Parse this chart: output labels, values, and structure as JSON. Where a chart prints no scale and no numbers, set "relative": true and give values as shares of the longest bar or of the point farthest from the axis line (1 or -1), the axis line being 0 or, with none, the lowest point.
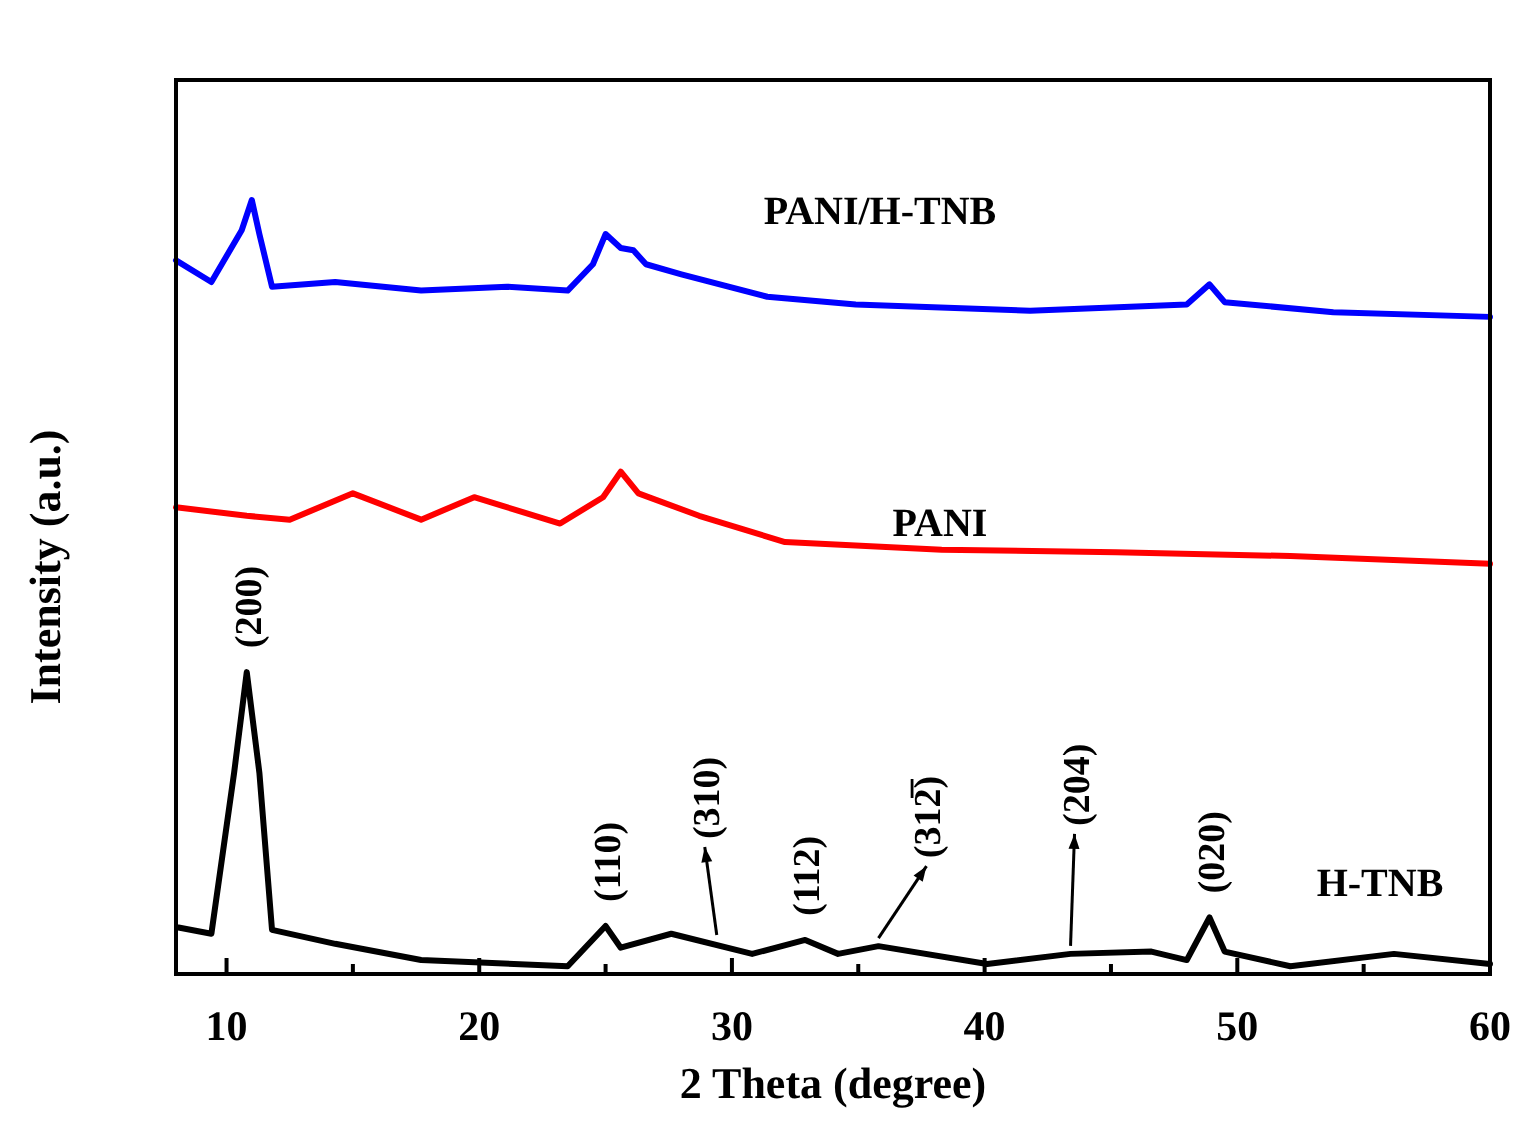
{
  "chart_data": {
    "type": "line",
    "relative": true,
    "xlabel": "2 Theta (degree)",
    "ylabel": "Intensity (a.u.)",
    "xlim": [
      8,
      60
    ],
    "xticks": [
      10,
      {
        "value": 15,
        "label": null
      },
      20,
      {
        "value": 25,
        "label": null
      },
      30,
      {
        "value": 35,
        "label": null
      },
      40,
      {
        "value": 45,
        "label": null
      },
      50,
      {
        "value": 55,
        "label": null
      },
      60
    ],
    "tick_labels": "x",
    "grid": false,
    "legend": false,
    "marker": "none",
    "line_style": "solid",
    "series": [
      {
        "name": "PANI/H-TNB",
        "color": "#0000ff",
        "x": [
          8,
          9.4,
          10.6,
          11.0,
          11.3,
          11.8,
          14.3,
          17.7,
          21.1,
          23.5,
          24.5,
          25.0,
          25.6,
          26.1,
          26.6,
          28.0,
          31.4,
          34.9,
          41.8,
          48.0,
          48.9,
          49.5,
          53.8,
          60
        ],
        "values": [
          0.922,
          0.894,
          0.961,
          1.0,
          0.956,
          0.888,
          0.894,
          0.883,
          0.888,
          0.883,
          0.917,
          0.956,
          0.938,
          0.935,
          0.917,
          0.904,
          0.875,
          0.865,
          0.857,
          0.865,
          0.891,
          0.868,
          0.855,
          0.849
        ]
      },
      {
        "name": "PANI",
        "color": "#ff0000",
        "x": [
          8,
          10.8,
          12.5,
          15,
          17.7,
          19.8,
          23.2,
          24.9,
          25.6,
          26.3,
          28.7,
          32.1,
          38.3,
          45.2,
          52.1,
          60
        ],
        "values": [
          0.603,
          0.592,
          0.587,
          0.621,
          0.587,
          0.616,
          0.582,
          0.616,
          0.649,
          0.621,
          0.592,
          0.558,
          0.548,
          0.545,
          0.54,
          0.53
        ]
      },
      {
        "name": "H-TNB",
        "color": "#000000",
        "x": [
          8.1,
          9.4,
          10.3,
          10.8,
          11.3,
          11.8,
          14.3,
          17.7,
          23.5,
          25.0,
          25.6,
          27.6,
          30.8,
          32.9,
          34.2,
          35.8,
          40.1,
          43.4,
          46.6,
          48.0,
          48.9,
          49.5,
          52.1,
          56.2,
          60
        ],
        "values": [
          0.06,
          0.052,
          0.26,
          0.39,
          0.26,
          0.057,
          0.039,
          0.018,
          0.01,
          0.062,
          0.034,
          0.052,
          0.026,
          0.044,
          0.026,
          0.036,
          0.013,
          0.026,
          0.029,
          0.018,
          0.073,
          0.029,
          0.01,
          0.026,
          0.013
        ]
      }
    ],
    "annotations": [
      {
        "text": "(200)",
        "x": 10.8,
        "y": 0.39
      },
      {
        "text": "(110)",
        "x": 25.0,
        "y": 0.062
      },
      {
        "text": "(310)",
        "x": 29.4,
        "y": 0.04
      },
      {
        "text": "(112)",
        "x": 32.9,
        "y": 0.044
      },
      {
        "text": "(312̅)",
        "x": 35.8,
        "y": 0.036
      },
      {
        "text": "(204)",
        "x": 43.4,
        "y": 0.026
      },
      {
        "text": "(020)",
        "x": 48.9,
        "y": 0.073
      }
    ]
  }
}
